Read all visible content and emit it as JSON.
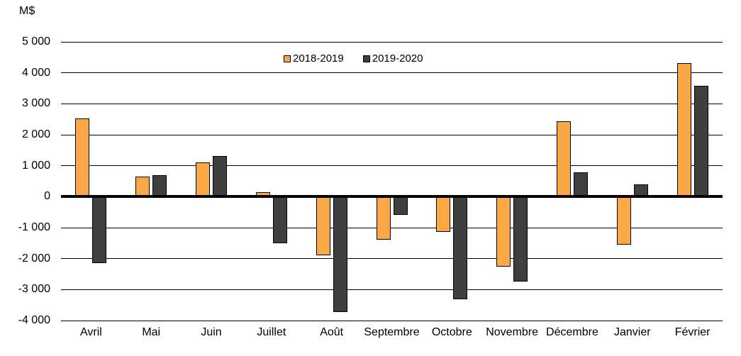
{
  "chart_data": {
    "type": "bar",
    "title": "",
    "unit_label": "M$",
    "categories": [
      "Avril",
      "Mai",
      "Juin",
      "Juillet",
      "Août",
      "Septembre",
      "Octobre",
      "Novembre",
      "Décembre",
      "Janvier",
      "Février"
    ],
    "series": [
      {
        "name": "2018-2019",
        "color": "#FAA845",
        "values": [
          2520,
          650,
          1100,
          140,
          -1900,
          -1390,
          -1130,
          -2260,
          2430,
          -1550,
          4310
        ]
      },
      {
        "name": "2019-2020",
        "color": "#3F3F3F",
        "values": [
          -2140,
          700,
          1310,
          -1500,
          -3720,
          -580,
          -3320,
          -2750,
          780,
          400,
          3590
        ]
      }
    ],
    "ylim": [
      -4000,
      5000
    ],
    "ytick_step": 1000,
    "ytick_labels": [
      "5 000",
      "4 000",
      "3 000",
      "2 000",
      "1 000",
      "0",
      "-1 000",
      "-2 000",
      "-3 000",
      "-4 000"
    ],
    "grid": true,
    "legend_position": "top-center",
    "bar_border_color": "#000000",
    "axis_color": "#000000"
  }
}
